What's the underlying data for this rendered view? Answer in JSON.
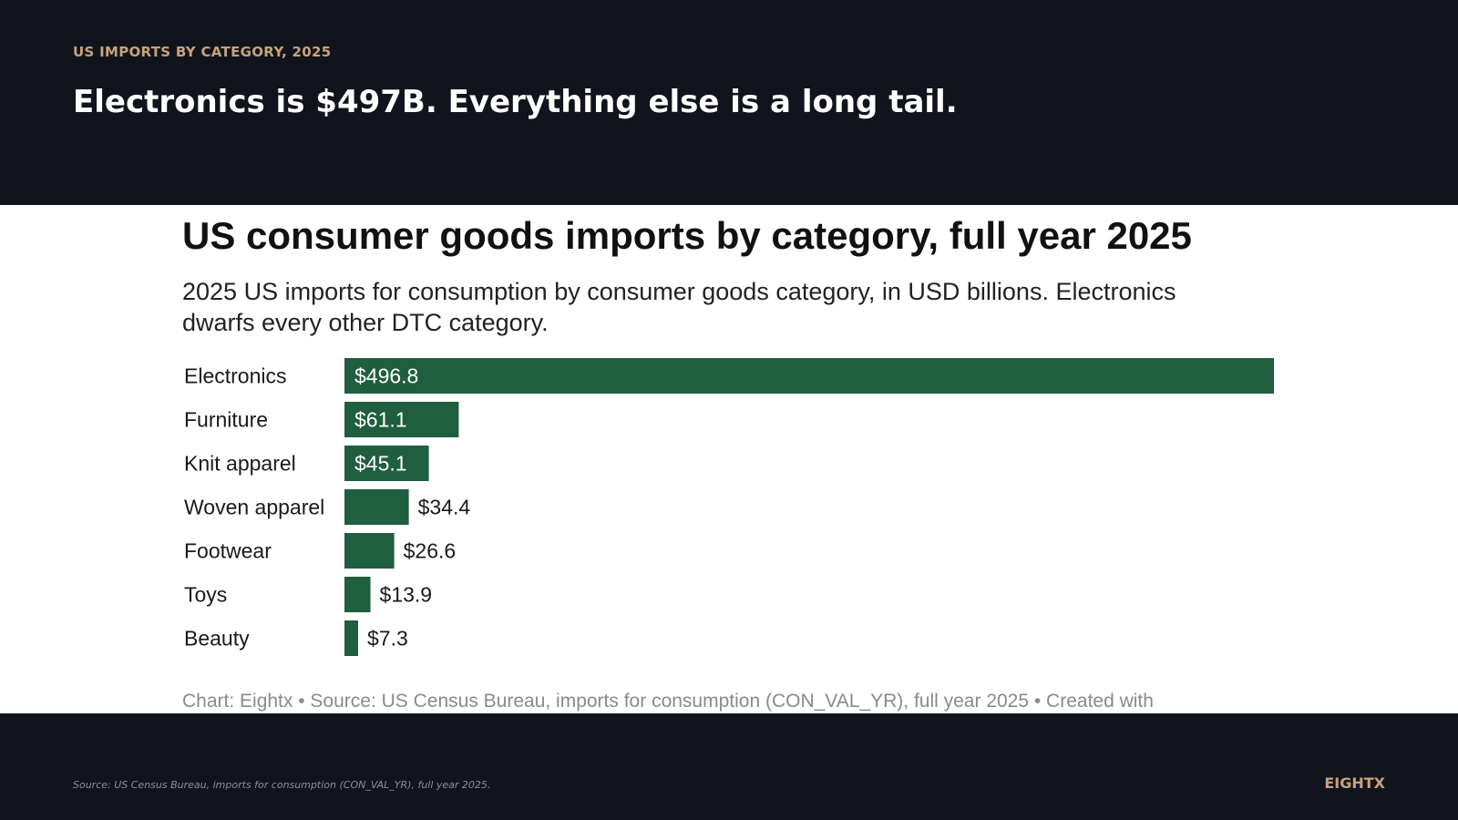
{
  "header": {
    "kicker": "US IMPORTS BY CATEGORY, 2025",
    "headline": "Electronics is $497B. Everything else is a long tail."
  },
  "chart_data": {
    "type": "bar",
    "orientation": "horizontal",
    "title": "US consumer goods imports by category, full year 2025",
    "subtitle": "2025 US imports for consumption by consumer goods category, in USD billions. Electronics dwarfs every other DTC category.",
    "categories": [
      "Electronics",
      "Furniture",
      "Knit apparel",
      "Woven apparel",
      "Footwear",
      "Toys",
      "Beauty"
    ],
    "values": [
      496.8,
      61.1,
      45.1,
      34.4,
      26.6,
      13.9,
      7.3
    ],
    "labels": [
      "$496.8",
      "$61.1",
      "$45.1",
      "$34.4",
      "$26.6",
      "$13.9",
      "$7.3"
    ],
    "xlim": [
      0,
      496.8
    ],
    "grid": false,
    "legend": "none",
    "bar_color": "#1f5e3f",
    "credit": "Chart: Eightx • Source: US Census Bureau, imports for consumption (CON_VAL_YR), full year 2025 • Created with"
  },
  "footer": {
    "source": "Source: US Census Bureau, imports for consumption (CON_VAL_YR), full year 2025.",
    "brand": "EIGHTX"
  },
  "colors": {
    "background": "#11141c",
    "accent": "#c9a27a",
    "bar": "#1f5e3f",
    "panel": "#ffffff"
  }
}
